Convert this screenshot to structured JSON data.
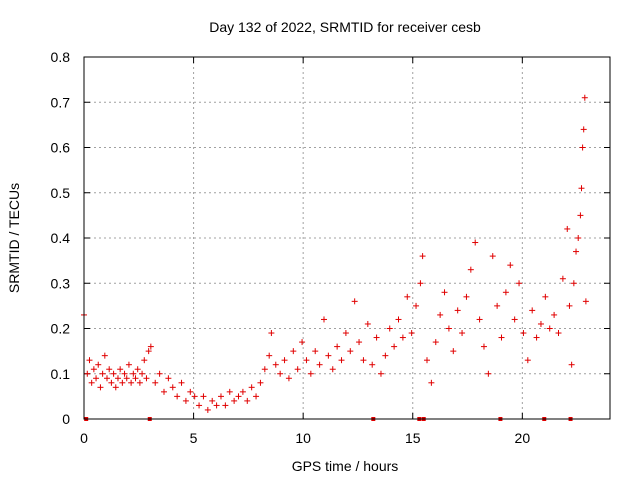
{
  "chart_data": {
    "type": "scatter",
    "title": "Day 132 of 2022, SRMTID for receiver cesb",
    "xlabel": "GPS time / hours",
    "ylabel": "SRMTID / TECUs",
    "xlim": [
      0,
      24
    ],
    "ylim": [
      0,
      0.8
    ],
    "xticks": [
      0,
      5,
      10,
      15,
      20
    ],
    "xtick_labels": [
      "0",
      "5",
      "10",
      "15",
      "20"
    ],
    "yticks": [
      0,
      0.1,
      0.2,
      0.3,
      0.4,
      0.5,
      0.6,
      0.7,
      0.8
    ],
    "ytick_labels": [
      "0",
      "0.1",
      "0.2",
      "0.3",
      "0.4",
      "0.5",
      "0.6",
      "0.7",
      "0.8"
    ],
    "grid": true,
    "marker": "+",
    "color": "#e00000",
    "series": [
      {
        "name": "SRMTID",
        "points": [
          [
            0.0,
            0.23
          ],
          [
            0.15,
            0.1
          ],
          [
            0.25,
            0.13
          ],
          [
            0.35,
            0.08
          ],
          [
            0.45,
            0.11
          ],
          [
            0.55,
            0.09
          ],
          [
            0.65,
            0.12
          ],
          [
            0.75,
            0.07
          ],
          [
            0.85,
            0.1
          ],
          [
            0.95,
            0.14
          ],
          [
            1.05,
            0.09
          ],
          [
            1.15,
            0.11
          ],
          [
            1.25,
            0.08
          ],
          [
            1.35,
            0.1
          ],
          [
            1.45,
            0.07
          ],
          [
            1.55,
            0.09
          ],
          [
            1.65,
            0.11
          ],
          [
            1.75,
            0.08
          ],
          [
            1.85,
            0.1
          ],
          [
            1.95,
            0.09
          ],
          [
            2.05,
            0.12
          ],
          [
            2.15,
            0.08
          ],
          [
            2.25,
            0.1
          ],
          [
            2.35,
            0.09
          ],
          [
            2.45,
            0.11
          ],
          [
            2.55,
            0.08
          ],
          [
            2.65,
            0.1
          ],
          [
            2.75,
            0.13
          ],
          [
            2.85,
            0.09
          ],
          [
            2.95,
            0.15
          ],
          [
            3.05,
            0.16
          ],
          [
            3.25,
            0.08
          ],
          [
            3.45,
            0.1
          ],
          [
            3.65,
            0.06
          ],
          [
            3.85,
            0.09
          ],
          [
            4.05,
            0.07
          ],
          [
            4.25,
            0.05
          ],
          [
            4.45,
            0.08
          ],
          [
            4.65,
            0.04
          ],
          [
            4.85,
            0.06
          ],
          [
            5.05,
            0.05
          ],
          [
            5.25,
            0.03
          ],
          [
            5.45,
            0.05
          ],
          [
            5.65,
            0.02
          ],
          [
            5.85,
            0.04
          ],
          [
            6.05,
            0.03
          ],
          [
            6.25,
            0.05
          ],
          [
            6.45,
            0.03
          ],
          [
            6.65,
            0.06
          ],
          [
            6.85,
            0.04
          ],
          [
            7.05,
            0.05
          ],
          [
            7.25,
            0.06
          ],
          [
            7.45,
            0.04
          ],
          [
            7.65,
            0.07
          ],
          [
            7.85,
            0.05
          ],
          [
            8.05,
            0.08
          ],
          [
            8.25,
            0.11
          ],
          [
            8.45,
            0.14
          ],
          [
            8.55,
            0.19
          ],
          [
            8.75,
            0.12
          ],
          [
            8.95,
            0.1
          ],
          [
            9.15,
            0.13
          ],
          [
            9.35,
            0.09
          ],
          [
            9.55,
            0.15
          ],
          [
            9.75,
            0.11
          ],
          [
            9.95,
            0.17
          ],
          [
            10.15,
            0.13
          ],
          [
            10.35,
            0.1
          ],
          [
            10.55,
            0.15
          ],
          [
            10.75,
            0.12
          ],
          [
            10.95,
            0.22
          ],
          [
            11.15,
            0.14
          ],
          [
            11.35,
            0.11
          ],
          [
            11.55,
            0.16
          ],
          [
            11.75,
            0.13
          ],
          [
            11.95,
            0.19
          ],
          [
            12.15,
            0.15
          ],
          [
            12.35,
            0.26
          ],
          [
            12.55,
            0.17
          ],
          [
            12.75,
            0.13
          ],
          [
            12.95,
            0.21
          ],
          [
            13.15,
            0.12
          ],
          [
            13.35,
            0.18
          ],
          [
            13.55,
            0.1
          ],
          [
            13.75,
            0.14
          ],
          [
            13.95,
            0.2
          ],
          [
            14.15,
            0.16
          ],
          [
            14.35,
            0.22
          ],
          [
            14.55,
            0.18
          ],
          [
            14.75,
            0.27
          ],
          [
            14.95,
            0.19
          ],
          [
            15.15,
            0.25
          ],
          [
            15.35,
            0.3
          ],
          [
            15.45,
            0.36
          ],
          [
            15.65,
            0.13
          ],
          [
            15.85,
            0.08
          ],
          [
            16.05,
            0.17
          ],
          [
            16.25,
            0.23
          ],
          [
            16.45,
            0.28
          ],
          [
            16.65,
            0.2
          ],
          [
            16.85,
            0.15
          ],
          [
            17.05,
            0.24
          ],
          [
            17.25,
            0.19
          ],
          [
            17.45,
            0.27
          ],
          [
            17.65,
            0.33
          ],
          [
            17.85,
            0.39
          ],
          [
            18.05,
            0.22
          ],
          [
            18.25,
            0.16
          ],
          [
            18.45,
            0.1
          ],
          [
            18.65,
            0.36
          ],
          [
            18.85,
            0.25
          ],
          [
            19.05,
            0.18
          ],
          [
            19.25,
            0.28
          ],
          [
            19.45,
            0.34
          ],
          [
            19.65,
            0.22
          ],
          [
            19.85,
            0.3
          ],
          [
            20.05,
            0.19
          ],
          [
            20.25,
            0.13
          ],
          [
            20.45,
            0.24
          ],
          [
            20.65,
            0.18
          ],
          [
            20.85,
            0.21
          ],
          [
            21.05,
            0.27
          ],
          [
            21.25,
            0.2
          ],
          [
            21.45,
            0.23
          ],
          [
            21.65,
            0.19
          ],
          [
            21.85,
            0.31
          ],
          [
            22.05,
            0.42
          ],
          [
            22.15,
            0.25
          ],
          [
            22.25,
            0.12
          ],
          [
            22.35,
            0.3
          ],
          [
            22.45,
            0.37
          ],
          [
            22.55,
            0.4
          ],
          [
            22.65,
            0.45
          ],
          [
            22.7,
            0.51
          ],
          [
            22.75,
            0.6
          ],
          [
            22.8,
            0.64
          ],
          [
            22.85,
            0.71
          ],
          [
            22.9,
            0.26
          ]
        ]
      }
    ],
    "baseline_markers_x": [
      0.1,
      3.0,
      13.2,
      15.3,
      15.5,
      19.0,
      21.0,
      22.2
    ]
  }
}
